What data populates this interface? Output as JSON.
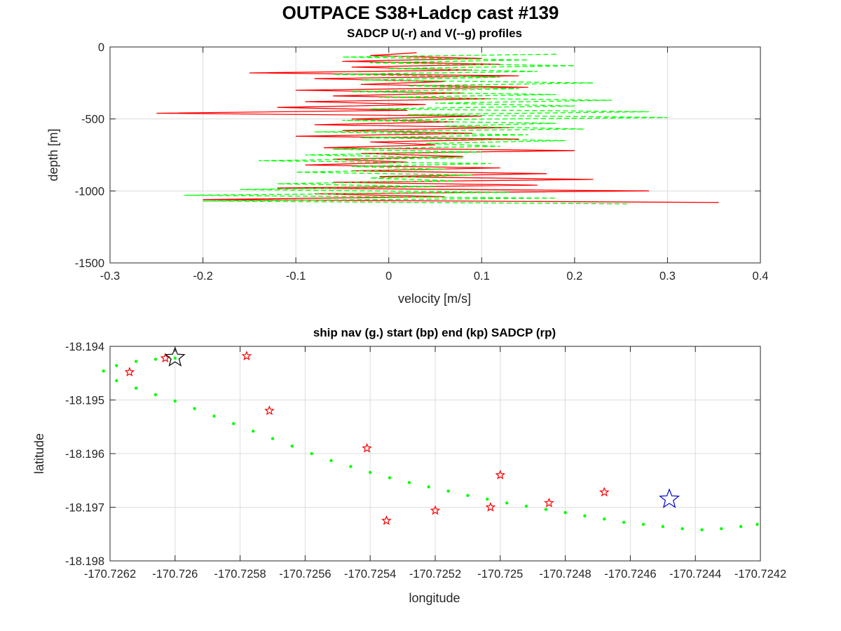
{
  "figure": {
    "title": "OUTPACE S38+Ladcp cast #139"
  },
  "chart_data": [
    {
      "type": "line",
      "title": "SADCP U(-r) and V(--g) profiles",
      "xlabel": "velocity [m/s]",
      "ylabel": "depth [m]",
      "xlim": [
        -0.3,
        0.4
      ],
      "ylim": [
        -1500,
        0
      ],
      "xticks": [
        -0.3,
        -0.2,
        -0.1,
        0,
        0.1,
        0.2,
        0.3,
        0.4
      ],
      "xtick_labels": [
        "-0.3",
        "-0.2",
        "-0.1",
        "0",
        "0.1",
        "0.2",
        "0.3",
        "0.4"
      ],
      "yticks": [
        0,
        -500,
        -1000,
        -1500
      ],
      "ytick_labels": [
        "0",
        "-500",
        "-1000",
        "-1500"
      ],
      "grid": true,
      "series": [
        {
          "color": "#ff0000",
          "style": "solid",
          "depth": [
            -40,
            -60,
            -80,
            -100,
            -120,
            -140,
            -160,
            -180,
            -200,
            -220,
            -240,
            -260,
            -280,
            -300,
            -320,
            -340,
            -360,
            -380,
            -400,
            -420,
            -440,
            -460,
            -480,
            -500,
            -520,
            -540,
            -560,
            -580,
            -600,
            -620,
            -640,
            -660,
            -680,
            -700,
            -720,
            -740,
            -760,
            -780,
            -800,
            -820,
            -840,
            -860,
            -880,
            -900,
            -920,
            -940,
            -960,
            -980,
            -1000,
            -1020,
            -1040,
            -1060,
            -1080
          ],
          "velocity": [
            0.03,
            -0.02,
            0.1,
            -0.05,
            0.12,
            -0.04,
            0.09,
            -0.15,
            0.14,
            -0.08,
            0.06,
            -0.03,
            0.15,
            -0.1,
            0.08,
            -0.06,
            0.11,
            -0.09,
            0.04,
            -0.12,
            0.02,
            -0.25,
            0.1,
            -0.04,
            0.07,
            -0.08,
            0.13,
            -0.05,
            0.09,
            -0.1,
            0.14,
            -0.02,
            0.05,
            -0.07,
            0.2,
            -0.03,
            0.08,
            -0.06,
            0.02,
            -0.09,
            0.12,
            -0.04,
            0.17,
            -0.01,
            0.22,
            -0.06,
            0.16,
            -0.12,
            0.28,
            -0.08,
            0.06,
            -0.2,
            0.355
          ]
        },
        {
          "color": "#00ff00",
          "style": "dashed",
          "depth": [
            -50,
            -70,
            -90,
            -110,
            -130,
            -150,
            -170,
            -190,
            -210,
            -230,
            -250,
            -270,
            -290,
            -310,
            -330,
            -350,
            -370,
            -390,
            -410,
            -430,
            -450,
            -470,
            -490,
            -510,
            -530,
            -550,
            -570,
            -590,
            -610,
            -630,
            -650,
            -670,
            -690,
            -710,
            -730,
            -750,
            -770,
            -790,
            -810,
            -830,
            -850,
            -870,
            -890,
            -910,
            -930,
            -950,
            -970,
            -990,
            -1010,
            -1030,
            -1050,
            -1070,
            -1090
          ],
          "velocity": [
            0.18,
            -0.05,
            0.15,
            -0.02,
            0.2,
            0.0,
            0.16,
            -0.06,
            0.12,
            -0.03,
            0.22,
            0.02,
            0.14,
            -0.04,
            0.18,
            -0.01,
            0.24,
            0.05,
            0.2,
            -0.02,
            0.28,
            0.02,
            0.3,
            -0.05,
            0.18,
            0.06,
            0.21,
            -0.08,
            0.15,
            -0.03,
            0.19,
            0.04,
            0.12,
            -0.06,
            0.1,
            -0.09,
            0.08,
            -0.14,
            0.11,
            -0.04,
            0.06,
            -0.1,
            0.09,
            -0.02,
            0.07,
            -0.12,
            0.05,
            -0.16,
            0.13,
            -0.22,
            0.18,
            -0.2,
            0.26
          ]
        }
      ]
    },
    {
      "type": "scatter",
      "title": "ship nav (g.) start (bp) end (kp) SADCP (rp)",
      "xlabel": "longitude",
      "ylabel": "latitude",
      "xlim": [
        -170.7262,
        -170.7242
      ],
      "ylim": [
        -18.198,
        -18.194
      ],
      "xticks": [
        -170.7262,
        -170.726,
        -170.7258,
        -170.7256,
        -170.7254,
        -170.7252,
        -170.725,
        -170.7248,
        -170.7246,
        -170.7244,
        -170.7242
      ],
      "xtick_labels": [
        "-170.7262",
        "-170.726",
        "-170.7258",
        "-170.7256",
        "-170.7254",
        "-170.7252",
        "-170.725",
        "-170.7248",
        "-170.7246",
        "-170.7244",
        "-170.7242"
      ],
      "yticks": [
        -18.194,
        -18.195,
        -18.196,
        -18.197,
        -18.198
      ],
      "ytick_labels": [
        "-18.194",
        "-18.195",
        "-18.196",
        "-18.197",
        "-18.198"
      ],
      "grid": true,
      "nav_color": "#00ff00",
      "nav_track": {
        "lon": [
          -170.726,
          -170.72606,
          -170.72612,
          -170.72618,
          -170.72622,
          -170.72618,
          -170.72612,
          -170.72606,
          -170.726,
          -170.72594,
          -170.72588,
          -170.72582,
          -170.72576,
          -170.7257,
          -170.72564,
          -170.72558,
          -170.72552,
          -170.72546,
          -170.7254,
          -170.72534,
          -170.72528,
          -170.72522,
          -170.72516,
          -170.7251,
          -170.72504,
          -170.72498,
          -170.72492,
          -170.72486,
          -170.7248,
          -170.72474,
          -170.72468,
          -170.72462,
          -170.72456,
          -170.7245,
          -170.72444,
          -170.72438,
          -170.72432,
          -170.72426,
          -170.72421
        ],
        "lat": [
          -18.19422,
          -18.19424,
          -18.19428,
          -18.19436,
          -18.19446,
          -18.19464,
          -18.19478,
          -18.1949,
          -18.19502,
          -18.19516,
          -18.1953,
          -18.19544,
          -18.19558,
          -18.19572,
          -18.19586,
          -18.196,
          -18.19613,
          -18.19624,
          -18.19635,
          -18.19645,
          -18.19654,
          -18.19662,
          -18.1967,
          -18.19678,
          -18.19685,
          -18.19692,
          -18.19698,
          -18.19704,
          -18.1971,
          -18.19716,
          -18.19722,
          -18.19728,
          -18.19732,
          -18.19736,
          -18.1974,
          -18.19742,
          -18.1974,
          -18.19736,
          -18.19732
        ]
      },
      "start_point": {
        "lon": -170.726,
        "lat": -18.19421,
        "color": "#0000cc"
      },
      "end_point": {
        "lon": -170.72448,
        "lat": -18.19685,
        "color": "#000000"
      },
      "sadcp_points": {
        "color": "#ff0000",
        "lon": [
          -170.72614,
          -170.72603,
          -170.72578,
          -170.72571,
          -170.72541,
          -170.72535,
          -170.7252,
          -170.72503,
          -170.725,
          -170.72485,
          -170.72468
        ],
        "lat": [
          -18.19448,
          -18.19422,
          -18.19418,
          -18.1952,
          -18.1959,
          -18.19725,
          -18.19706,
          -18.197,
          -18.1964,
          -18.19692,
          -18.19672
        ]
      }
    }
  ]
}
